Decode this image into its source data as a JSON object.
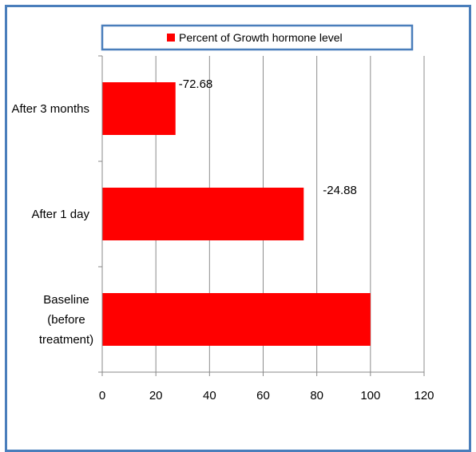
{
  "chart_data": {
    "type": "bar",
    "orientation": "horizontal",
    "categories": [
      "Baseline (before treatment)",
      "After 1 day",
      "After 3 months"
    ],
    "category_lines": [
      [
        "Baseline",
        "(before",
        "treatment)"
      ],
      [
        "After 1 day"
      ],
      [
        "After 3 months"
      ]
    ],
    "series": [
      {
        "name": "Percent of Growth hormone level",
        "values": [
          100,
          75.12,
          27.32
        ],
        "data_labels": [
          "",
          "-24.88",
          "-72.68"
        ],
        "color": "#ff0000"
      }
    ],
    "xlim": [
      0,
      120
    ],
    "x_ticks": [
      0,
      20,
      40,
      60,
      80,
      100,
      120
    ],
    "grid": true,
    "legend": {
      "label": "Percent of Growth hormone level",
      "position": "top",
      "border_color": "#4a7ebb"
    }
  }
}
